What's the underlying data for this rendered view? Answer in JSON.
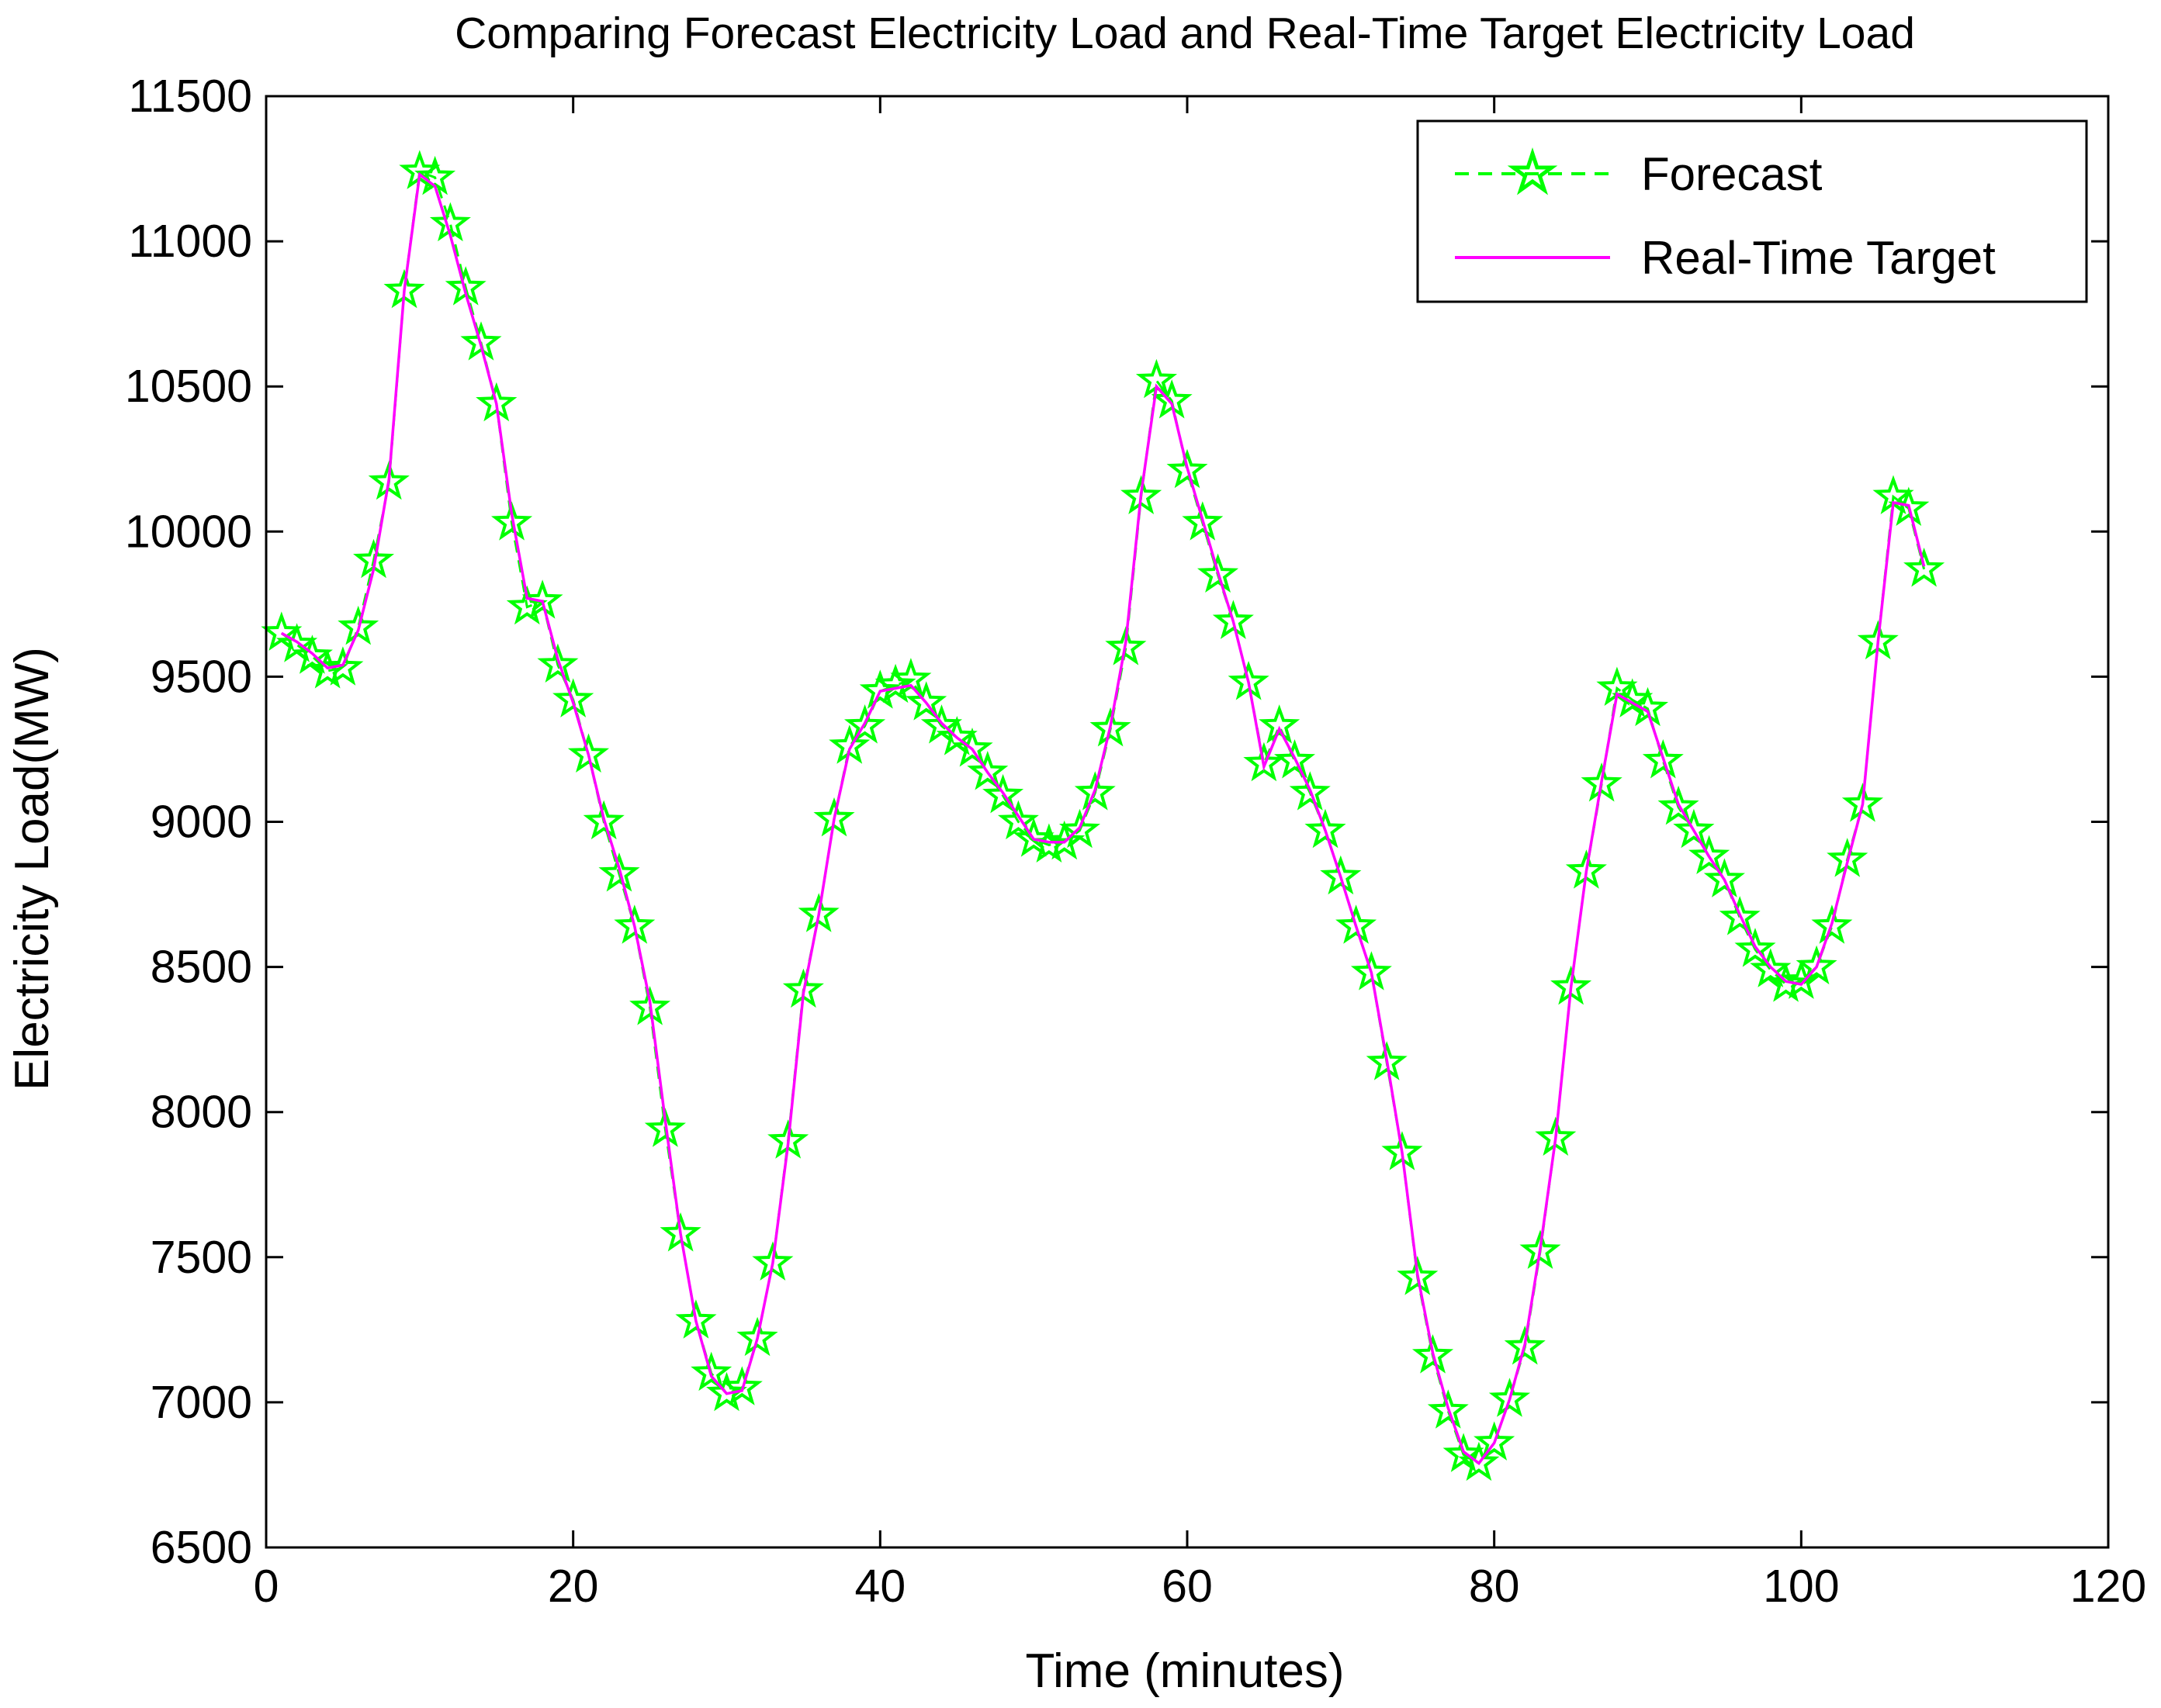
{
  "chart_data": {
    "type": "line",
    "title": "Comparing Forecast Electricity Load and Real-Time Target Electricity Load",
    "xlabel": "Time (minutes)",
    "ylabel": "Electricity Load(MW)",
    "xlim": [
      0,
      120
    ],
    "ylim": [
      6500,
      11500
    ],
    "xticks": [
      0,
      20,
      40,
      60,
      80,
      100,
      120
    ],
    "yticks": [
      6500,
      7000,
      7500,
      8000,
      8500,
      9000,
      9500,
      10000,
      10500,
      11000,
      11500
    ],
    "xtick_labels": [
      "0",
      "20",
      "40",
      "60",
      "80",
      "100",
      "120"
    ],
    "ytick_labels": [
      "6500",
      "7000",
      "7500",
      "8000",
      "8500",
      "9000",
      "9500",
      "10000",
      "10500",
      "11000",
      "11500"
    ],
    "legend_position": "top-right",
    "x": [
      1,
      2,
      3,
      4,
      5,
      6,
      7,
      8,
      9,
      10,
      11,
      12,
      13,
      14,
      15,
      16,
      17,
      18,
      19,
      20,
      21,
      22,
      23,
      24,
      25,
      26,
      27,
      28,
      29,
      30,
      31,
      32,
      33,
      34,
      35,
      36,
      37,
      38,
      39,
      40,
      41,
      42,
      43,
      44,
      45,
      46,
      47,
      48,
      49,
      50,
      51,
      52,
      53,
      54,
      55,
      56,
      57,
      58,
      59,
      60,
      61,
      62,
      63,
      64,
      65,
      66,
      67,
      68,
      69,
      70,
      71,
      72,
      73,
      74,
      75,
      76,
      77,
      78,
      79,
      80,
      81,
      82,
      83,
      84,
      85,
      86,
      87,
      88,
      89,
      90,
      91,
      92,
      93,
      94,
      95,
      96,
      97,
      98,
      99,
      100,
      101,
      102,
      103,
      104,
      105,
      106,
      107,
      108
    ],
    "series": [
      {
        "name": "Forecast",
        "color": "#00ff00",
        "style": "dashed-star",
        "values": [
          9650,
          9610,
          9570,
          9520,
          9530,
          9670,
          9900,
          10170,
          10830,
          11240,
          11220,
          11060,
          10840,
          10650,
          10440,
          10030,
          9740,
          9760,
          9540,
          9420,
          9230,
          9000,
          8820,
          8640,
          8360,
          7940,
          7580,
          7280,
          7100,
          7030,
          7050,
          7220,
          7480,
          7900,
          8420,
          8680,
          9010,
          9260,
          9330,
          9450,
          9470,
          9490,
          9410,
          9330,
          9290,
          9250,
          9170,
          9090,
          9000,
          8940,
          8920,
          8930,
          8970,
          9100,
          9320,
          9600,
          10120,
          10520,
          10450,
          10210,
          10030,
          9850,
          9690,
          9480,
          9200,
          9330,
          9210,
          9100,
          8970,
          8810,
          8640,
          8480,
          8170,
          7860,
          7430,
          7160,
          6970,
          6820,
          6790,
          6860,
          7010,
          7190,
          7520,
          7910,
          8430,
          8830,
          9130,
          9460,
          9420,
          9390,
          9210,
          9050,
          8970,
          8880,
          8800,
          8670,
          8560,
          8490,
          8440,
          8450,
          8500,
          8640,
          8870,
          9060,
          9620,
          10120,
          10080,
          9870
        ]
      },
      {
        "name": "Real-Time Target",
        "color": "#ff00ff",
        "style": "solid",
        "values": [
          9650,
          9620,
          9580,
          9530,
          9540,
          9660,
          9870,
          10180,
          10830,
          11230,
          11190,
          11020,
          10820,
          10640,
          10440,
          10060,
          9770,
          9760,
          9560,
          9410,
          9230,
          9010,
          8840,
          8640,
          8380,
          7970,
          7580,
          7280,
          7090,
          7030,
          7040,
          7220,
          7480,
          7890,
          8410,
          8680,
          9010,
          9250,
          9340,
          9450,
          9460,
          9470,
          9410,
          9340,
          9290,
          9250,
          9170,
          9100,
          9020,
          8940,
          8930,
          8930,
          8980,
          9110,
          9330,
          9620,
          10130,
          10500,
          10440,
          10220,
          10040,
          9860,
          9690,
          9480,
          9190,
          9320,
          9220,
          9110,
          8970,
          8810,
          8640,
          8480,
          8180,
          7860,
          7440,
          7170,
          6980,
          6830,
          6790,
          6860,
          7010,
          7200,
          7530,
          7910,
          8430,
          8830,
          9140,
          9440,
          9410,
          9380,
          9220,
          9060,
          8970,
          8880,
          8800,
          8680,
          8570,
          8500,
          8450,
          8440,
          8500,
          8650,
          8860,
          9060,
          9620,
          10100,
          10090,
          9880
        ]
      }
    ]
  }
}
